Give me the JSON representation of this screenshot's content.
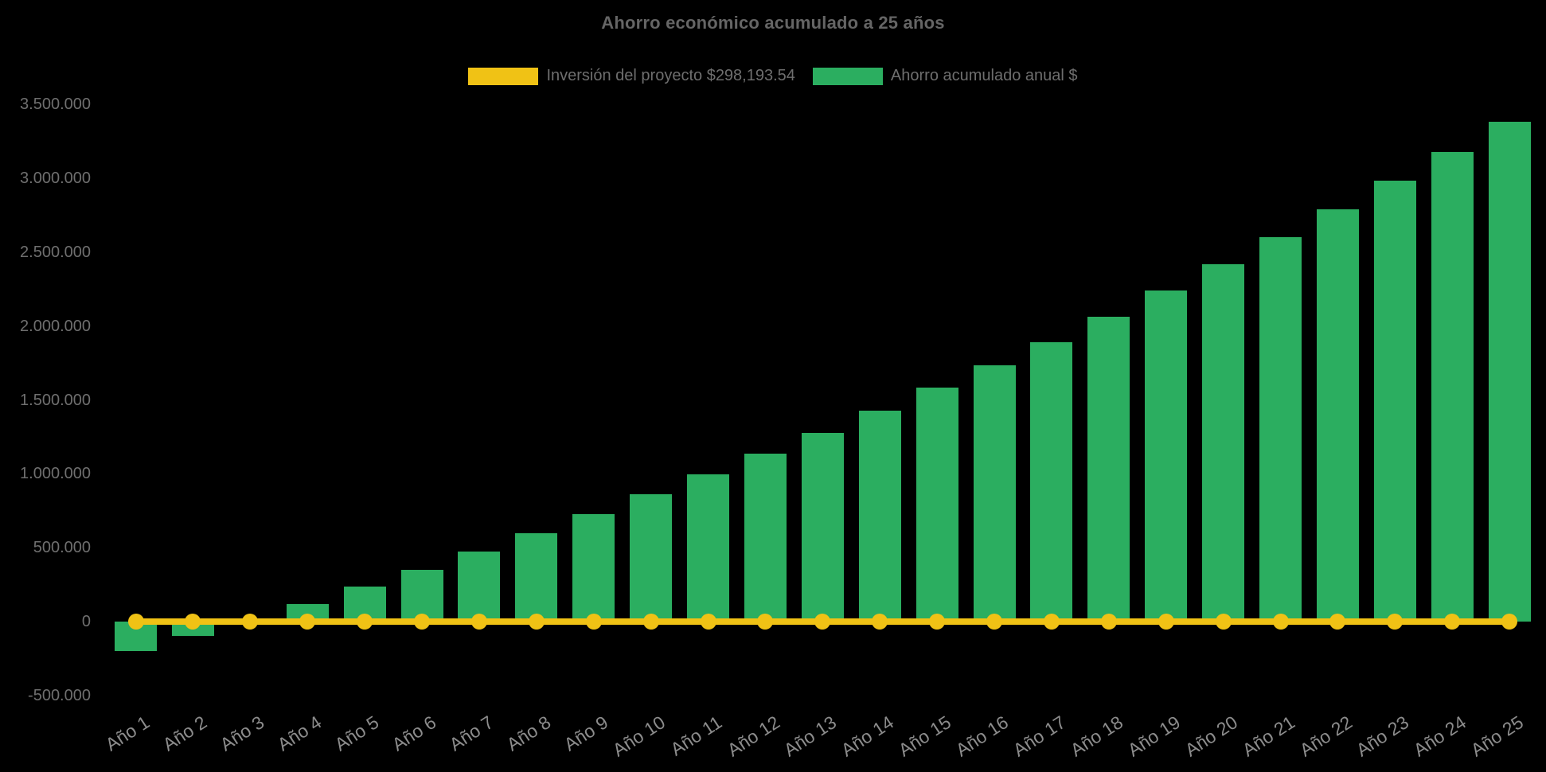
{
  "title": "Ahorro económico acumulado a 25 años",
  "legend": {
    "items": [
      {
        "id": "investment",
        "label": "Inversión del proyecto $298,193.54",
        "color": "#F0C215"
      },
      {
        "id": "savings",
        "label": "Ahorro acumulado anual $",
        "color": "#2BAE60"
      }
    ]
  },
  "chart_data": {
    "type": "bar",
    "title": "Ahorro económico acumulado a 25 años",
    "categories": [
      "Año 1",
      "Año 2",
      "Año 3",
      "Año 4",
      "Año 5",
      "Año 6",
      "Año 7",
      "Año 8",
      "Año 9",
      "Año 10",
      "Año 11",
      "Año 12",
      "Año 13",
      "Año 14",
      "Año 15",
      "Año 16",
      "Año 17",
      "Año 18",
      "Año 19",
      "Año 20",
      "Año 21",
      "Año 22",
      "Año 23",
      "Año 24",
      "Año 25"
    ],
    "series": [
      {
        "name": "Inversión del proyecto $298,193.54",
        "type": "line",
        "color": "#F0C215",
        "marker": "circle",
        "values": [
          0,
          0,
          0,
          0,
          0,
          0,
          0,
          0,
          0,
          0,
          0,
          0,
          0,
          0,
          0,
          0,
          0,
          0,
          0,
          0,
          0,
          0,
          0,
          0,
          0
        ]
      },
      {
        "name": "Ahorro acumulado anual $",
        "type": "bar",
        "color": "#2BAE60",
        "values": [
          -200000,
          -98000,
          4000,
          120000,
          238000,
          352000,
          476000,
          600000,
          725000,
          860000,
          995000,
          1136000,
          1277000,
          1428000,
          1585000,
          1736000,
          1893000,
          2061000,
          2240000,
          2418000,
          2602000,
          2791000,
          2986000,
          3181000,
          3386000
        ]
      }
    ],
    "ylim": [
      -500000,
      3500000
    ],
    "ytick_values": [
      -500000,
      0,
      500000,
      1000000,
      1500000,
      2000000,
      2500000,
      3000000,
      3500000
    ],
    "ytick_labels": [
      "-500.000",
      "0",
      "500.000",
      "1.000.000",
      "1.500.000",
      "2.000.000",
      "2.500.000",
      "3.000.000",
      "3.500.000"
    ],
    "grid": false,
    "axis_lines": false,
    "legend_position": "top",
    "background": "#000000",
    "y_tick_color": "#6f6f6f",
    "x_tick_color": "#8c8c8c"
  }
}
